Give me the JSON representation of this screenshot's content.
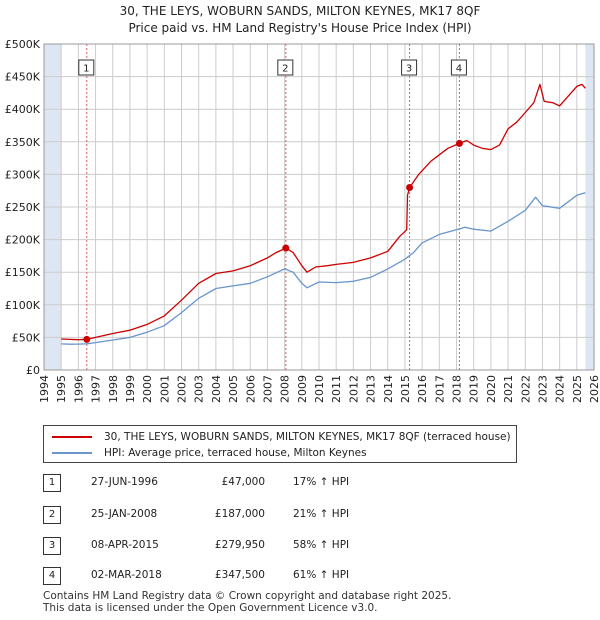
{
  "title_line1": "30, THE LEYS, WOBURN SANDS, MILTON KEYNES, MK17 8QF",
  "title_line2": "Price paid vs. HM Land Registry's House Price Index (HPI)",
  "colors": {
    "price_line": "#cc0000",
    "hpi_line": "#6a96cc",
    "shade": "#dde6f2",
    "vline": "#e06060",
    "grid": "#cccccc"
  },
  "legend": {
    "property": "30, THE LEYS, WOBURN SANDS, MILTON KEYNES, MK17 8QF (terraced house)",
    "hpi": "HPI: Average price, terraced house, Milton Keynes"
  },
  "sales": [
    {
      "num": "1",
      "date": "27-JUN-1996",
      "price": "£47,000",
      "hpi": "17% ↑ HPI"
    },
    {
      "num": "2",
      "date": "25-JAN-2008",
      "price": "£187,000",
      "hpi": "21% ↑ HPI"
    },
    {
      "num": "3",
      "date": "08-APR-2015",
      "price": "£279,950",
      "hpi": "58% ↑ HPI"
    },
    {
      "num": "4",
      "date": "02-MAR-2018",
      "price": "£347,500",
      "hpi": "61% ↑ HPI"
    }
  ],
  "footer": {
    "line1": "Contains HM Land Registry data © Crown copyright and database right 2025.",
    "line2": "This data is licensed under the Open Government Licence v3.0."
  },
  "chart_data": {
    "type": "line",
    "title": "30, THE LEYS, WOBURN SANDS, MILTON KEYNES, MK17 8QF",
    "subtitle": "Price paid vs. HM Land Registry's House Price Index (HPI)",
    "xlabel": "",
    "ylabel": "",
    "xlim": [
      1994,
      2026
    ],
    "ylim": [
      0,
      500000
    ],
    "x_ticks": [
      "1994",
      "1995",
      "1996",
      "1997",
      "1998",
      "1999",
      "2000",
      "2001",
      "2002",
      "2003",
      "2004",
      "2005",
      "2006",
      "2007",
      "2008",
      "2009",
      "2010",
      "2011",
      "2012",
      "2013",
      "2014",
      "2015",
      "2016",
      "2017",
      "2018",
      "2019",
      "2020",
      "2021",
      "2022",
      "2023",
      "2024",
      "2025",
      "2026"
    ],
    "y_ticks": [
      {
        "value": 0,
        "label": "£0"
      },
      {
        "value": 50000,
        "label": "£50K"
      },
      {
        "value": 100000,
        "label": "£100K"
      },
      {
        "value": 150000,
        "label": "£150K"
      },
      {
        "value": 200000,
        "label": "£200K"
      },
      {
        "value": 250000,
        "label": "£250K"
      },
      {
        "value": 300000,
        "label": "£300K"
      },
      {
        "value": 350000,
        "label": "£350K"
      },
      {
        "value": 400000,
        "label": "£400K"
      },
      {
        "value": 450000,
        "label": "£450K"
      },
      {
        "value": 500000,
        "label": "£500K"
      }
    ],
    "series": [
      {
        "name": "30, THE LEYS, WOBURN SANDS, MILTON KEYNES, MK17 8QF (terraced house)",
        "points": [
          [
            1995.0,
            47500
          ],
          [
            1995.5,
            47000
          ],
          [
            1996.0,
            46500
          ],
          [
            1996.49,
            47000
          ],
          [
            1997.0,
            50000
          ],
          [
            1998.0,
            56000
          ],
          [
            1999.0,
            61000
          ],
          [
            2000.0,
            70000
          ],
          [
            2001.0,
            83000
          ],
          [
            2002.0,
            107000
          ],
          [
            2003.0,
            133000
          ],
          [
            2004.0,
            148000
          ],
          [
            2005.0,
            152000
          ],
          [
            2006.0,
            160000
          ],
          [
            2007.0,
            172000
          ],
          [
            2007.5,
            180000
          ],
          [
            2008.07,
            187000
          ],
          [
            2008.5,
            180000
          ],
          [
            2009.0,
            160000
          ],
          [
            2009.3,
            150000
          ],
          [
            2009.8,
            158000
          ],
          [
            2010.5,
            160000
          ],
          [
            2011.0,
            162000
          ],
          [
            2012.0,
            165000
          ],
          [
            2013.0,
            172000
          ],
          [
            2014.0,
            182000
          ],
          [
            2014.7,
            205000
          ],
          [
            2015.1,
            215000
          ],
          [
            2015.15,
            268000
          ],
          [
            2015.27,
            279950
          ],
          [
            2015.8,
            300000
          ],
          [
            2016.5,
            320000
          ],
          [
            2017.0,
            330000
          ],
          [
            2017.5,
            340000
          ],
          [
            2018.17,
            347500
          ],
          [
            2018.6,
            352000
          ],
          [
            2019.0,
            345000
          ],
          [
            2019.5,
            340000
          ],
          [
            2020.0,
            338000
          ],
          [
            2020.5,
            345000
          ],
          [
            2021.0,
            370000
          ],
          [
            2021.5,
            380000
          ],
          [
            2022.0,
            395000
          ],
          [
            2022.5,
            410000
          ],
          [
            2022.85,
            438000
          ],
          [
            2023.1,
            412000
          ],
          [
            2023.6,
            410000
          ],
          [
            2024.0,
            405000
          ],
          [
            2024.5,
            420000
          ],
          [
            2025.0,
            435000
          ],
          [
            2025.3,
            438000
          ],
          [
            2025.5,
            432000
          ]
        ]
      },
      {
        "name": "HPI: Average price, terraced house, Milton Keynes",
        "points": [
          [
            1995.0,
            40000
          ],
          [
            1995.5,
            39500
          ],
          [
            1996.0,
            39800
          ],
          [
            1996.5,
            40200
          ],
          [
            1997.0,
            42000
          ],
          [
            1998.0,
            46000
          ],
          [
            1999.0,
            50000
          ],
          [
            2000.0,
            58000
          ],
          [
            2001.0,
            68000
          ],
          [
            2002.0,
            88000
          ],
          [
            2003.0,
            110000
          ],
          [
            2004.0,
            125000
          ],
          [
            2005.0,
            129000
          ],
          [
            2006.0,
            133000
          ],
          [
            2007.0,
            143000
          ],
          [
            2008.0,
            155000
          ],
          [
            2008.5,
            150000
          ],
          [
            2009.0,
            133000
          ],
          [
            2009.3,
            126000
          ],
          [
            2010.0,
            135000
          ],
          [
            2011.0,
            134000
          ],
          [
            2012.0,
            136000
          ],
          [
            2013.0,
            142000
          ],
          [
            2014.0,
            155000
          ],
          [
            2015.0,
            170000
          ],
          [
            2015.5,
            180000
          ],
          [
            2016.0,
            195000
          ],
          [
            2017.0,
            208000
          ],
          [
            2018.0,
            215000
          ],
          [
            2018.5,
            219000
          ],
          [
            2019.0,
            216000
          ],
          [
            2020.0,
            213000
          ],
          [
            2021.0,
            228000
          ],
          [
            2022.0,
            245000
          ],
          [
            2022.6,
            265000
          ],
          [
            2023.0,
            252000
          ],
          [
            2024.0,
            248000
          ],
          [
            2024.5,
            258000
          ],
          [
            2025.0,
            268000
          ],
          [
            2025.5,
            272000
          ]
        ]
      }
    ],
    "sales": [
      {
        "num": "1",
        "x": 1996.49,
        "value": 47000
      },
      {
        "num": "2",
        "x": 2008.07,
        "value": 187000
      },
      {
        "num": "3",
        "x": 2015.27,
        "value": 279950
      },
      {
        "num": "4",
        "x": 2018.17,
        "value": 347500
      }
    ],
    "shaded_ranges": [
      [
        1994,
        1995
      ],
      [
        2025.5,
        2026
      ]
    ]
  }
}
